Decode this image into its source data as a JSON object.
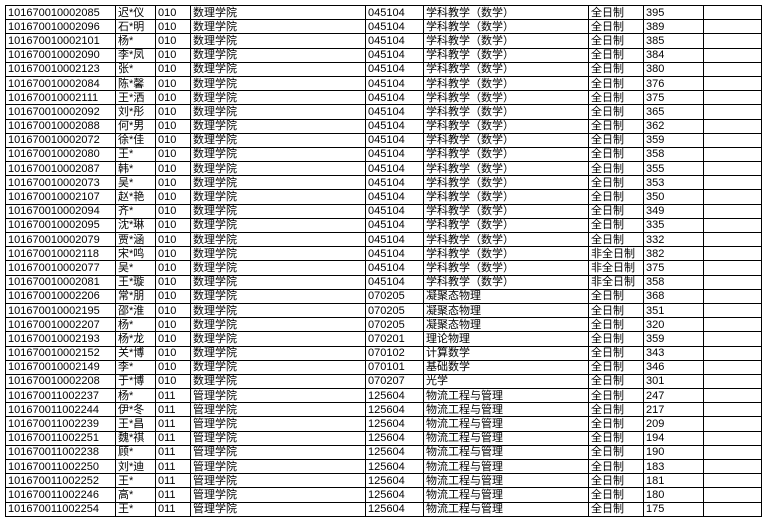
{
  "rows": [
    [
      "10167001000208５",
      "迟*仪",
      "010",
      "数理学院",
      "045104",
      "学科教学（数学）",
      "全日制",
      "395"
    ],
    [
      "101670010002096",
      "石*明",
      "010",
      "数理学院",
      "045104",
      "学科教学（数学）",
      "全日制",
      "389"
    ],
    [
      "101670010002101",
      "杨*",
      "010",
      "数理学院",
      "045104",
      "学科教学（数学）",
      "全日制",
      "385"
    ],
    [
      "101670010002090",
      "李*凤",
      "010",
      "数理学院",
      "045104",
      "学科教学（数学）",
      "全日制",
      "384"
    ],
    [
      "101670010002123",
      "张*",
      "010",
      "数理学院",
      "045104",
      "学科教学（数学）",
      "全日制",
      "380"
    ],
    [
      "101670010002084",
      "陈*馨",
      "010",
      "数理学院",
      "045104",
      "学科教学（数学）",
      "全日制",
      "376"
    ],
    [
      "101670010002111",
      "王*洒",
      "010",
      "数理学院",
      "045104",
      "学科教学（数学）",
      "全日制",
      "375"
    ],
    [
      "101670010002092",
      "刘*彤",
      "010",
      "数理学院",
      "045104",
      "学科教学（数学）",
      "全日制",
      "365"
    ],
    [
      "101670010002088",
      "何*男",
      "010",
      "数理学院",
      "045104",
      "学科教学（数学）",
      "全日制",
      "362"
    ],
    [
      "101670010002072",
      "徐*佳",
      "010",
      "数理学院",
      "045104",
      "学科教学（数学）",
      "全日制",
      "359"
    ],
    [
      "101670010002080",
      "王*",
      "010",
      "数理学院",
      "045104",
      "学科教学（数学）",
      "全日制",
      "358"
    ],
    [
      "101670010002087",
      "韩*",
      "010",
      "数理学院",
      "045104",
      "学科教学（数学）",
      "全日制",
      "355"
    ],
    [
      "101670010002073",
      "吴*",
      "010",
      "数理学院",
      "045104",
      "学科教学（数学）",
      "全日制",
      "353"
    ],
    [
      "101670010002107",
      "赵*艳",
      "010",
      "数理学院",
      "045104",
      "学科教学（数学）",
      "全日制",
      "350"
    ],
    [
      "101670010002094",
      "齐*",
      "010",
      "数理学院",
      "045104",
      "学科教学（数学）",
      "全日制",
      "349"
    ],
    [
      "101670010002095",
      "沈*琳",
      "010",
      "数理学院",
      "045104",
      "学科教学（数学）",
      "全日制",
      "335"
    ],
    [
      "101670010002079",
      "贾*涵",
      "010",
      "数理学院",
      "045104",
      "学科教学（数学）",
      "全日制",
      "332"
    ],
    [
      "101670010002118",
      "宋*鸣",
      "010",
      "数理学院",
      "045104",
      "学科教学（数学）",
      "非全日制",
      "382"
    ],
    [
      "101670010002077",
      "吴*",
      "010",
      "数理学院",
      "045104",
      "学科教学（数学）",
      "非全日制",
      "375"
    ],
    [
      "101670010002081",
      "王*璇",
      "010",
      "数理学院",
      "045104",
      "学科教学（数学）",
      "非全日制",
      "358"
    ],
    [
      "101670010002206",
      "常*朋",
      "010",
      "数理学院",
      "070205",
      "凝聚态物理",
      "全日制",
      "368"
    ],
    [
      "101670010002195",
      "邵*淮",
      "010",
      "数理学院",
      "070205",
      "凝聚态物理",
      "全日制",
      "351"
    ],
    [
      "101670010002207",
      "杨*",
      "010",
      "数理学院",
      "070205",
      "凝聚态物理",
      "全日制",
      "320"
    ],
    [
      "101670010002193",
      "杨*龙",
      "010",
      "数理学院",
      "070201",
      "理论物理",
      "全日制",
      "359"
    ],
    [
      "101670010002152",
      "关*博",
      "010",
      "数理学院",
      "070102",
      "计算数学",
      "全日制",
      "343"
    ],
    [
      "101670010002149",
      "李*",
      "010",
      "数理学院",
      "070101",
      "基础数学",
      "全日制",
      "346"
    ],
    [
      "101670010002208",
      "于*博",
      "010",
      "数理学院",
      "070207",
      "光学",
      "全日制",
      "301"
    ],
    [
      "101670011002237",
      "杨*",
      "011",
      "管理学院",
      "125604",
      "物流工程与管理",
      "全日制",
      "247"
    ],
    [
      "101670011002244",
      "伊*冬",
      "011",
      "管理学院",
      "125604",
      "物流工程与管理",
      "全日制",
      "217"
    ],
    [
      "101670011002239",
      "王*昌",
      "011",
      "管理学院",
      "125604",
      "物流工程与管理",
      "全日制",
      "209"
    ],
    [
      "101670011002251",
      "魏*祺",
      "011",
      "管理学院",
      "125604",
      "物流工程与管理",
      "全日制",
      "194"
    ],
    [
      "101670011002238",
      "顾*",
      "011",
      "管理学院",
      "125604",
      "物流工程与管理",
      "全日制",
      "190"
    ],
    [
      "101670011002250",
      "刘*迪",
      "011",
      "管理学院",
      "125604",
      "物流工程与管理",
      "全日制",
      "183"
    ],
    [
      "101670011002252",
      "王*",
      "011",
      "管理学院",
      "125604",
      "物流工程与管理",
      "全日制",
      "181"
    ],
    [
      "101670011002246",
      "高*",
      "011",
      "管理学院",
      "125604",
      "物流工程与管理",
      "全日制",
      "180"
    ],
    [
      "101670011002254",
      "王*",
      "011",
      "管理学院",
      "125604",
      "物流工程与管理",
      "全日制",
      "175"
    ]
  ]
}
